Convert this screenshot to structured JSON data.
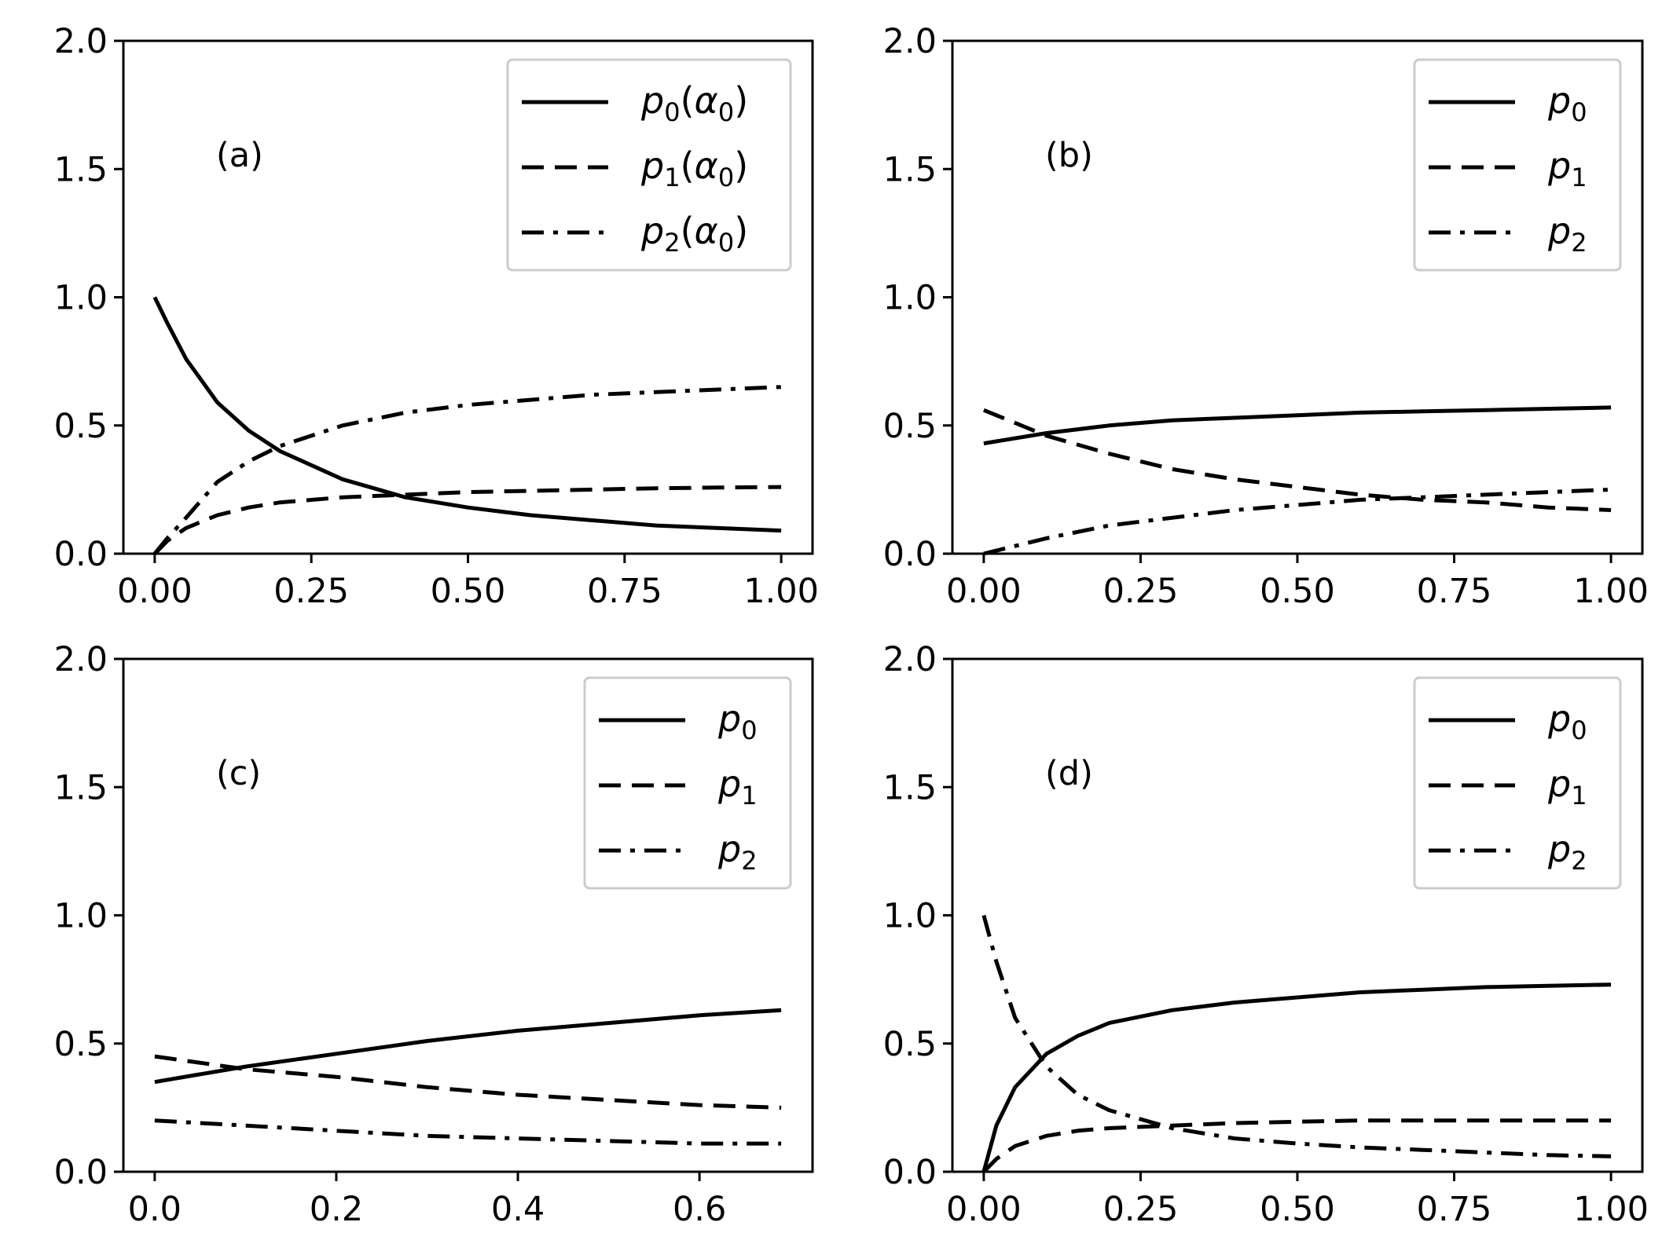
{
  "chart_data": [
    {
      "panel": "(a)",
      "type": "line",
      "x_range": [
        0,
        1
      ],
      "ylim": [
        0,
        2
      ],
      "x_ticks": [
        "0.00",
        "0.25",
        "0.50",
        "0.75",
        "1.00"
      ],
      "y_ticks": [
        "0.0",
        "0.5",
        "1.0",
        "1.5",
        "2.0"
      ],
      "legend": [
        "p0(α0)",
        "p1(α0)",
        "p2(α0)"
      ],
      "series": [
        {
          "name": "p0(α0)",
          "style": "solid",
          "x": [
            0,
            0.02,
            0.05,
            0.1,
            0.15,
            0.2,
            0.3,
            0.4,
            0.5,
            0.6,
            0.7,
            0.8,
            0.9,
            1.0
          ],
          "y": [
            1.0,
            0.9,
            0.76,
            0.59,
            0.48,
            0.4,
            0.29,
            0.22,
            0.18,
            0.15,
            0.13,
            0.11,
            0.1,
            0.09
          ]
        },
        {
          "name": "p1(α0)",
          "style": "dashed",
          "x": [
            0,
            0.02,
            0.05,
            0.1,
            0.15,
            0.2,
            0.3,
            0.4,
            0.5,
            0.6,
            0.7,
            0.8,
            0.9,
            1.0
          ],
          "y": [
            0.0,
            0.05,
            0.1,
            0.15,
            0.18,
            0.2,
            0.22,
            0.23,
            0.24,
            0.245,
            0.25,
            0.255,
            0.258,
            0.26
          ]
        },
        {
          "name": "p2(α0)",
          "style": "dashdot",
          "x": [
            0,
            0.02,
            0.05,
            0.1,
            0.15,
            0.2,
            0.3,
            0.4,
            0.5,
            0.6,
            0.7,
            0.8,
            0.9,
            1.0
          ],
          "y": [
            0.0,
            0.06,
            0.14,
            0.28,
            0.36,
            0.42,
            0.5,
            0.55,
            0.58,
            0.6,
            0.62,
            0.63,
            0.64,
            0.65
          ]
        }
      ]
    },
    {
      "panel": "(b)",
      "type": "line",
      "x_range": [
        0,
        1
      ],
      "ylim": [
        0,
        2
      ],
      "x_ticks": [
        "0.00",
        "0.25",
        "0.50",
        "0.75",
        "1.00"
      ],
      "y_ticks": [
        "0.0",
        "0.5",
        "1.0",
        "1.5",
        "2.0"
      ],
      "legend": [
        "p0",
        "p1",
        "p2"
      ],
      "series": [
        {
          "name": "p0",
          "style": "solid",
          "x": [
            0,
            0.1,
            0.2,
            0.3,
            0.4,
            0.5,
            0.6,
            0.7,
            0.8,
            0.9,
            1.0
          ],
          "y": [
            0.43,
            0.47,
            0.5,
            0.52,
            0.53,
            0.54,
            0.55,
            0.555,
            0.56,
            0.565,
            0.57
          ]
        },
        {
          "name": "p1",
          "style": "dashed",
          "x": [
            0,
            0.1,
            0.2,
            0.3,
            0.4,
            0.5,
            0.6,
            0.7,
            0.8,
            0.9,
            1.0
          ],
          "y": [
            0.56,
            0.46,
            0.39,
            0.33,
            0.29,
            0.26,
            0.23,
            0.21,
            0.2,
            0.18,
            0.17
          ]
        },
        {
          "name": "p2",
          "style": "dashdot",
          "x": [
            0,
            0.1,
            0.2,
            0.3,
            0.4,
            0.5,
            0.6,
            0.7,
            0.8,
            0.9,
            1.0
          ],
          "y": [
            0.0,
            0.06,
            0.11,
            0.14,
            0.17,
            0.19,
            0.21,
            0.22,
            0.23,
            0.24,
            0.25
          ]
        }
      ]
    },
    {
      "panel": "(c)",
      "type": "line",
      "x_range": [
        0,
        0.69
      ],
      "ylim": [
        0,
        2
      ],
      "x_ticks": [
        "0.0",
        "0.2",
        "0.4",
        "0.6"
      ],
      "y_ticks": [
        "0.0",
        "0.5",
        "1.0",
        "1.5",
        "2.0"
      ],
      "legend": [
        "p0",
        "p1",
        "p2"
      ],
      "series": [
        {
          "name": "p0",
          "style": "solid",
          "x": [
            0,
            0.1,
            0.2,
            0.3,
            0.4,
            0.5,
            0.6,
            0.69
          ],
          "y": [
            0.35,
            0.41,
            0.46,
            0.51,
            0.55,
            0.58,
            0.61,
            0.63
          ]
        },
        {
          "name": "p1",
          "style": "dashed",
          "x": [
            0,
            0.1,
            0.2,
            0.3,
            0.4,
            0.5,
            0.6,
            0.69
          ],
          "y": [
            0.45,
            0.4,
            0.37,
            0.33,
            0.3,
            0.28,
            0.26,
            0.25
          ]
        },
        {
          "name": "p2",
          "style": "dashdot",
          "x": [
            0,
            0.1,
            0.2,
            0.3,
            0.4,
            0.5,
            0.6,
            0.69
          ],
          "y": [
            0.2,
            0.18,
            0.16,
            0.14,
            0.13,
            0.12,
            0.11,
            0.11
          ]
        }
      ]
    },
    {
      "panel": "(d)",
      "type": "line",
      "x_range": [
        0,
        1
      ],
      "ylim": [
        0,
        2
      ],
      "x_ticks": [
        "0.00",
        "0.25",
        "0.50",
        "0.75",
        "1.00"
      ],
      "y_ticks": [
        "0.0",
        "0.5",
        "1.0",
        "1.5",
        "2.0"
      ],
      "legend": [
        "p0",
        "p1",
        "p2"
      ],
      "series": [
        {
          "name": "p0",
          "style": "solid",
          "x": [
            0,
            0.02,
            0.05,
            0.1,
            0.15,
            0.2,
            0.3,
            0.4,
            0.5,
            0.6,
            0.7,
            0.8,
            0.9,
            1.0
          ],
          "y": [
            0.0,
            0.18,
            0.33,
            0.46,
            0.53,
            0.58,
            0.63,
            0.66,
            0.68,
            0.7,
            0.71,
            0.72,
            0.725,
            0.73
          ]
        },
        {
          "name": "p1",
          "style": "dashed",
          "x": [
            0,
            0.02,
            0.05,
            0.1,
            0.15,
            0.2,
            0.3,
            0.4,
            0.5,
            0.6,
            0.7,
            0.8,
            0.9,
            1.0
          ],
          "y": [
            0.0,
            0.05,
            0.1,
            0.14,
            0.16,
            0.17,
            0.18,
            0.19,
            0.195,
            0.2,
            0.2,
            0.2,
            0.2,
            0.2
          ]
        },
        {
          "name": "p2",
          "style": "dashdot",
          "x": [
            0,
            0.02,
            0.05,
            0.1,
            0.15,
            0.2,
            0.3,
            0.4,
            0.5,
            0.6,
            0.7,
            0.8,
            0.9,
            1.0
          ],
          "y": [
            1.0,
            0.82,
            0.6,
            0.41,
            0.3,
            0.24,
            0.17,
            0.13,
            0.11,
            0.095,
            0.085,
            0.075,
            0.065,
            0.06
          ]
        }
      ]
    }
  ]
}
